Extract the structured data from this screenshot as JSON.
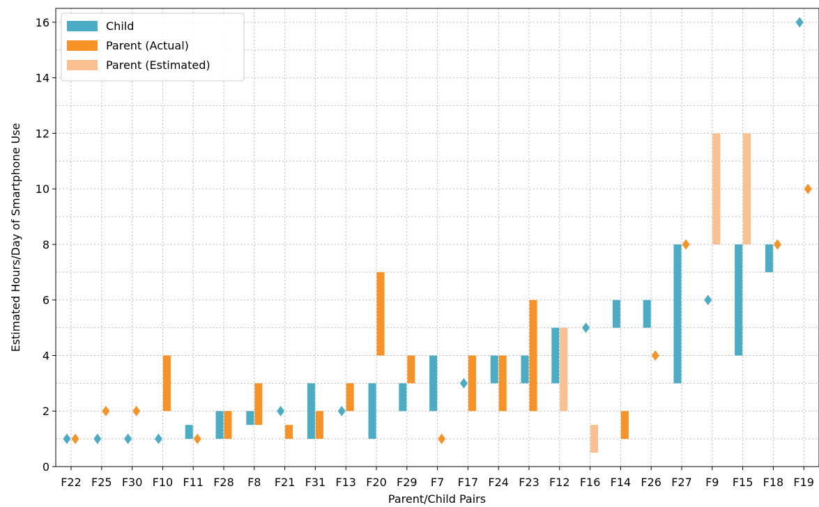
{
  "chart_data": {
    "type": "bar",
    "xlabel": "Parent/Child Pairs",
    "ylabel": "Estimated Hours/Day of Smartphone Use",
    "ylim": [
      0,
      16.5
    ],
    "yticks": [
      0,
      2,
      4,
      6,
      8,
      10,
      12,
      14,
      16
    ],
    "grid": true,
    "legend_position": "top-left",
    "legend": [
      {
        "name": "Child",
        "color": "#4bacc6"
      },
      {
        "name": "Parent (Actual)",
        "color": "#f79226"
      },
      {
        "name": "Parent (Estimated)",
        "color": "#fac090"
      }
    ],
    "categories": [
      "F22",
      "F25",
      "F30",
      "F10",
      "F11",
      "F28",
      "F8",
      "F21",
      "F31",
      "F13",
      "F20",
      "F29",
      "F7",
      "F17",
      "F24",
      "F23",
      "F12",
      "F16",
      "F14",
      "F26",
      "F27",
      "F9",
      "F15",
      "F18",
      "F19"
    ],
    "note": "each entry is a [low, high] range of hours; equal low/high is shown as a diamond marker; null means not shown",
    "child": [
      [
        1,
        1
      ],
      [
        1,
        1
      ],
      [
        1,
        1
      ],
      [
        1,
        1
      ],
      [
        1,
        1.5
      ],
      [
        1,
        2
      ],
      [
        1.5,
        2
      ],
      [
        2,
        2
      ],
      [
        1,
        3
      ],
      [
        2,
        2
      ],
      [
        1,
        3
      ],
      [
        2,
        3
      ],
      [
        2,
        4
      ],
      [
        3,
        3
      ],
      [
        3,
        4
      ],
      [
        3,
        4
      ],
      [
        3,
        5
      ],
      [
        5,
        5
      ],
      [
        5,
        6
      ],
      [
        5,
        6
      ],
      [
        3,
        8
      ],
      [
        6,
        6
      ],
      [
        4,
        8
      ],
      [
        7,
        8
      ],
      [
        16,
        16
      ]
    ],
    "parent": [
      [
        1,
        1
      ],
      [
        2,
        2
      ],
      [
        2,
        2
      ],
      [
        2,
        4
      ],
      [
        1,
        1
      ],
      [
        1,
        2
      ],
      [
        1.5,
        3
      ],
      [
        1,
        1.5
      ],
      [
        1,
        2
      ],
      [
        2,
        3
      ],
      [
        4,
        7
      ],
      [
        3,
        4
      ],
      [
        1,
        1
      ],
      [
        2,
        4
      ],
      [
        2,
        4
      ],
      [
        2,
        6
      ],
      [
        2,
        5
      ],
      [
        0.5,
        1.5
      ],
      [
        1,
        2
      ],
      [
        4,
        4
      ],
      [
        8,
        8
      ],
      [
        8,
        12
      ],
      [
        8,
        12
      ],
      [
        8,
        8
      ],
      [
        10,
        10
      ]
    ],
    "parent_type": [
      "actual",
      "actual",
      "actual",
      "actual",
      "actual",
      "actual",
      "actual",
      "actual",
      "actual",
      "actual",
      "actual",
      "actual",
      "actual",
      "actual",
      "actual",
      "actual",
      "estimated",
      "estimated",
      "actual",
      "actual",
      "actual",
      "estimated",
      "estimated",
      "actual",
      "actual"
    ]
  }
}
